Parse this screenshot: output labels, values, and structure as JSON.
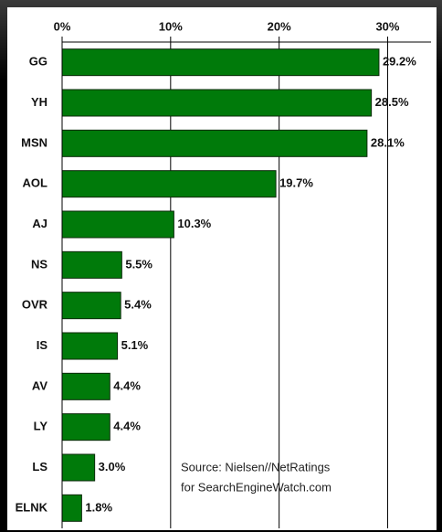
{
  "chart_data": {
    "type": "bar",
    "orientation": "horizontal",
    "categories": [
      "GG",
      "YH",
      "MSN",
      "AOL",
      "AJ",
      "NS",
      "OVR",
      "IS",
      "AV",
      "LY",
      "LS",
      "ELNK"
    ],
    "values": [
      29.2,
      28.5,
      28.1,
      19.7,
      10.3,
      5.5,
      5.4,
      5.1,
      4.4,
      4.4,
      3.0,
      1.8
    ],
    "value_labels": [
      "29.2%",
      "28.5%",
      "28.1%",
      "19.7%",
      "10.3%",
      "5.5%",
      "5.4%",
      "5.1%",
      "4.4%",
      "4.4%",
      "3.0%",
      "1.8%"
    ],
    "color": "#007a0a",
    "xlim": [
      0,
      34
    ],
    "xticks": [
      {
        "value": 0,
        "label": "0%"
      },
      {
        "value": 10,
        "label": "10%"
      },
      {
        "value": 20,
        "label": "20%"
      },
      {
        "value": 30,
        "label": "30%"
      }
    ],
    "grid": true,
    "annotations": [
      "Source: Nielsen//NetRatings",
      "for SearchEngineWatch.com"
    ]
  }
}
